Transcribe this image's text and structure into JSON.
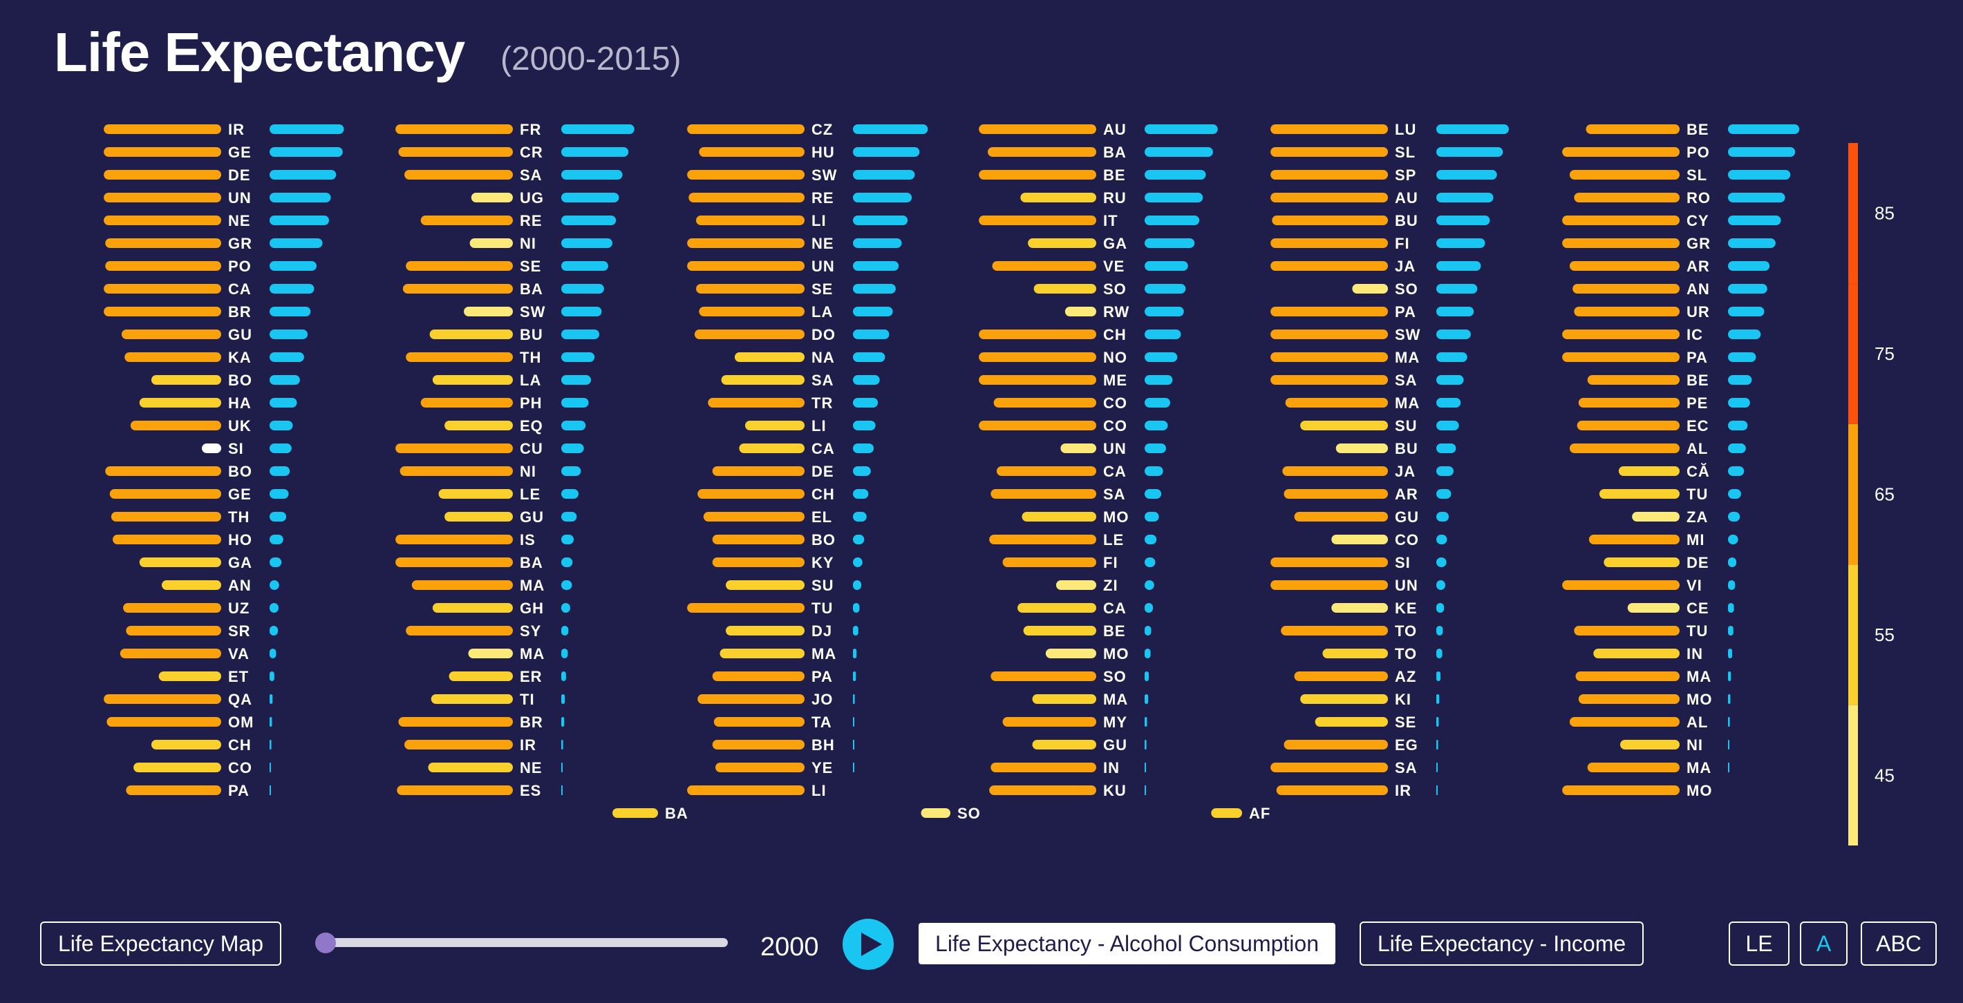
{
  "header": {
    "title": "Life Expectancy",
    "subtitle": "(2000-2015)"
  },
  "controls": {
    "map_label": "Life Expectancy Map",
    "year": "2000",
    "alcohol_label": "Life Expectancy - Alcohol Consumption",
    "income_label": "Life Expectancy - Income",
    "sort_le": "LE",
    "sort_a": "A",
    "sort_abc": "ABC",
    "slider_fraction": 0
  },
  "colors": {
    "background": "#1f1e4a",
    "alcohol_bar": "#19c6f2",
    "le_45_55": "#ffffff",
    "le_55_65": "#fbea7a",
    "le_65_75": "#fad02c",
    "le_75_85": "#f9a20b",
    "le_85_plus": "#fb520c",
    "slider_thumb": "#9077c9"
  },
  "chart_data": {
    "type": "bar",
    "title": "Life Expectancy",
    "subtitle": "(2000-2015)",
    "measures": [
      "life expectancy (left, orange bars)",
      "alcohol consumption (right, blue bars)"
    ],
    "legend": {
      "position": "right",
      "ticks": [
        85,
        75,
        65,
        55,
        45
      ],
      "bins": [
        40,
        50,
        60,
        70,
        80,
        90
      ]
    },
    "columns": [
      [
        {
          "c": "IR",
          "le": 79.5,
          "a": 12.5
        },
        {
          "c": "GE",
          "le": 79.5,
          "a": 12.3
        },
        {
          "c": "DE",
          "le": 79.5,
          "a": 11.2
        },
        {
          "c": "UN",
          "le": 79.5,
          "a": 10.3
        },
        {
          "c": "NE",
          "le": 79.5,
          "a": 10.0
        },
        {
          "c": "GR",
          "le": 79.0,
          "a": 8.9
        },
        {
          "c": "PO",
          "le": 79.0,
          "a": 7.9
        },
        {
          "c": "CA",
          "le": 79.5,
          "a": 7.5
        },
        {
          "c": "BR",
          "le": 79.5,
          "a": 6.9
        },
        {
          "c": "GU",
          "le": 73.5,
          "a": 6.4
        },
        {
          "c": "KA",
          "le": 72.5,
          "a": 5.8
        },
        {
          "c": "BO",
          "le": 63.5,
          "a": 5.1
        },
        {
          "c": "HA",
          "le": 67.5,
          "a": 4.6
        },
        {
          "c": "UK",
          "le": 70.5,
          "a": 3.9
        },
        {
          "c": "SI",
          "le": 46.5,
          "a": 3.7
        },
        {
          "c": "BO",
          "le": 79.0,
          "a": 3.4
        },
        {
          "c": "GE",
          "le": 77.5,
          "a": 3.2
        },
        {
          "c": "TH",
          "le": 77.0,
          "a": 2.8
        },
        {
          "c": "HO",
          "le": 76.5,
          "a": 2.3
        },
        {
          "c": "GA",
          "le": 67.5,
          "a": 2.0
        },
        {
          "c": "AN",
          "le": 60.0,
          "a": 1.6
        },
        {
          "c": "UZ",
          "le": 73.0,
          "a": 1.5
        },
        {
          "c": "SR",
          "le": 72.0,
          "a": 1.4
        },
        {
          "c": "VA",
          "le": 74.0,
          "a": 1.1
        },
        {
          "c": "ET",
          "le": 61.0,
          "a": 0.8
        },
        {
          "c": "QA",
          "le": 79.5,
          "a": 0.5
        },
        {
          "c": "OM",
          "le": 78.5,
          "a": 0.4
        },
        {
          "c": "CH",
          "le": 63.5,
          "a": 0.3
        },
        {
          "c": "CO",
          "le": 69.5,
          "a": 0.2
        },
        {
          "c": "PA",
          "le": 72.0,
          "a": 0.1
        }
      ],
      [
        {
          "c": "FR",
          "le": 79.5,
          "a": 12.3
        },
        {
          "c": "CR",
          "le": 78.5,
          "a": 11.3
        },
        {
          "c": "SA",
          "le": 76.5,
          "a": 10.3
        },
        {
          "c": "UG",
          "le": 54.0,
          "a": 9.7
        },
        {
          "c": "RE",
          "le": 71.0,
          "a": 9.2
        },
        {
          "c": "NI",
          "le": 54.5,
          "a": 8.6
        },
        {
          "c": "SE",
          "le": 76.0,
          "a": 7.9
        },
        {
          "c": "BA",
          "le": 77.0,
          "a": 7.2
        },
        {
          "c": "SW",
          "le": 56.5,
          "a": 6.8
        },
        {
          "c": "BU",
          "le": 68.0,
          "a": 6.4
        },
        {
          "c": "TH",
          "le": 76.0,
          "a": 5.6
        },
        {
          "c": "LA",
          "le": 67.0,
          "a": 5.0
        },
        {
          "c": "PH",
          "le": 71.0,
          "a": 4.6
        },
        {
          "c": "EQ",
          "le": 63.0,
          "a": 4.1
        },
        {
          "c": "CU",
          "le": 79.5,
          "a": 3.8
        },
        {
          "c": "NI",
          "le": 78.0,
          "a": 3.3
        },
        {
          "c": "LE",
          "le": 65.0,
          "a": 2.9
        },
        {
          "c": "GU",
          "le": 63.0,
          "a": 2.6
        },
        {
          "c": "IS",
          "le": 79.5,
          "a": 2.1
        },
        {
          "c": "BA",
          "le": 79.5,
          "a": 1.9
        },
        {
          "c": "MA",
          "le": 74.0,
          "a": 1.8
        },
        {
          "c": "GH",
          "le": 67.0,
          "a": 1.5
        },
        {
          "c": "SY",
          "le": 76.0,
          "a": 1.2
        },
        {
          "c": "MA",
          "le": 55.0,
          "a": 1.1
        },
        {
          "c": "ER",
          "le": 61.5,
          "a": 0.8
        },
        {
          "c": "TI",
          "le": 67.5,
          "a": 0.6
        },
        {
          "c": "BR",
          "le": 78.5,
          "a": 0.5
        },
        {
          "c": "IR",
          "le": 76.5,
          "a": 0.3
        },
        {
          "c": "NE",
          "le": 68.5,
          "a": 0.2
        },
        {
          "c": "ES",
          "le": 79.0,
          "a": 0.1
        }
      ],
      [
        {
          "c": "CZ",
          "le": 79.5,
          "a": 12.6
        },
        {
          "c": "HU",
          "le": 75.5,
          "a": 11.2
        },
        {
          "c": "SW",
          "le": 79.5,
          "a": 10.4
        },
        {
          "c": "RE",
          "le": 79.0,
          "a": 9.9
        },
        {
          "c": "LI",
          "le": 76.5,
          "a": 9.2
        },
        {
          "c": "NE",
          "le": 79.5,
          "a": 8.2
        },
        {
          "c": "UN",
          "le": 79.5,
          "a": 7.7
        },
        {
          "c": "SE",
          "le": 76.5,
          "a": 7.2
        },
        {
          "c": "LA",
          "le": 75.5,
          "a": 6.7
        },
        {
          "c": "DO",
          "le": 77.0,
          "a": 6.1
        },
        {
          "c": "NA",
          "le": 63.5,
          "a": 5.4
        },
        {
          "c": "SA",
          "le": 68.0,
          "a": 4.5
        },
        {
          "c": "TR",
          "le": 72.5,
          "a": 4.2
        },
        {
          "c": "LI",
          "le": 60.0,
          "a": 3.8
        },
        {
          "c": "CA",
          "le": 62.0,
          "a": 3.5
        },
        {
          "c": "DE",
          "le": 71.0,
          "a": 3.0
        },
        {
          "c": "CH",
          "le": 76.0,
          "a": 2.6
        },
        {
          "c": "EL",
          "le": 74.0,
          "a": 2.3
        },
        {
          "c": "BO",
          "le": 71.0,
          "a": 1.9
        },
        {
          "c": "KY",
          "le": 71.0,
          "a": 1.6
        },
        {
          "c": "SU",
          "le": 66.5,
          "a": 1.4
        },
        {
          "c": "TU",
          "le": 79.5,
          "a": 1.1
        },
        {
          "c": "DJ",
          "le": 66.5,
          "a": 0.9
        },
        {
          "c": "MA",
          "le": 68.5,
          "a": 0.6
        },
        {
          "c": "PA",
          "le": 71.0,
          "a": 0.5
        },
        {
          "c": "JO",
          "le": 76.0,
          "a": 0.3
        },
        {
          "c": "TA",
          "le": 70.5,
          "a": 0.2
        },
        {
          "c": "BH",
          "le": 71.0,
          "a": 0.1
        },
        {
          "c": "YE",
          "le": 70.0,
          "a": 0.05
        },
        {
          "c": "LI",
          "le": 79.5,
          "a": 0
        }
      ],
      [
        {
          "c": "AU",
          "le": 79.5,
          "a": 12.3
        },
        {
          "c": "BA",
          "le": 76.5,
          "a": 11.5
        },
        {
          "c": "BE",
          "le": 79.5,
          "a": 10.3
        },
        {
          "c": "RU",
          "le": 65.5,
          "a": 9.8
        },
        {
          "c": "IT",
          "le": 79.5,
          "a": 9.2
        },
        {
          "c": "GA",
          "le": 63.0,
          "a": 8.4
        },
        {
          "c": "VE",
          "le": 75.0,
          "a": 7.3
        },
        {
          "c": "SO",
          "le": 61.0,
          "a": 6.9
        },
        {
          "c": "RW",
          "le": 50.5,
          "a": 6.6
        },
        {
          "c": "CH",
          "le": 79.5,
          "a": 6.1
        },
        {
          "c": "NO",
          "le": 79.5,
          "a": 5.5
        },
        {
          "c": "ME",
          "le": 79.5,
          "a": 4.7
        },
        {
          "c": "CO",
          "le": 74.5,
          "a": 4.3
        },
        {
          "c": "CO",
          "le": 79.5,
          "a": 3.9
        },
        {
          "c": "UN",
          "le": 52.0,
          "a": 3.6
        },
        {
          "c": "CA",
          "le": 73.5,
          "a": 3.1
        },
        {
          "c": "SA",
          "le": 75.5,
          "a": 2.8
        },
        {
          "c": "MO",
          "le": 65.0,
          "a": 2.4
        },
        {
          "c": "LE",
          "le": 76.0,
          "a": 2.0
        },
        {
          "c": "FI",
          "le": 71.5,
          "a": 1.8
        },
        {
          "c": "ZI",
          "le": 53.5,
          "a": 1.6
        },
        {
          "c": "CA",
          "le": 66.5,
          "a": 1.4
        },
        {
          "c": "BE",
          "le": 64.5,
          "a": 1.1
        },
        {
          "c": "MO",
          "le": 57.0,
          "a": 1.0
        },
        {
          "c": "SO",
          "le": 75.5,
          "a": 0.7
        },
        {
          "c": "MA",
          "le": 61.5,
          "a": 0.6
        },
        {
          "c": "MY",
          "le": 71.5,
          "a": 0.4
        },
        {
          "c": "GU",
          "le": 61.5,
          "a": 0.3
        },
        {
          "c": "IN",
          "le": 75.5,
          "a": 0.15
        },
        {
          "c": "KU",
          "le": 76.0,
          "a": 0.05
        }
      ],
      [
        {
          "c": "LU",
          "le": 79.5,
          "a": 12.2
        },
        {
          "c": "SL",
          "le": 79.5,
          "a": 11.2
        },
        {
          "c": "SP",
          "le": 79.5,
          "a": 10.2
        },
        {
          "c": "AU",
          "le": 79.5,
          "a": 9.6
        },
        {
          "c": "BU",
          "le": 79.0,
          "a": 9.0
        },
        {
          "c": "FI",
          "le": 79.5,
          "a": 8.2
        },
        {
          "c": "JA",
          "le": 79.5,
          "a": 7.5
        },
        {
          "c": "SO",
          "le": 52.0,
          "a": 6.9
        },
        {
          "c": "PA",
          "le": 79.5,
          "a": 6.3
        },
        {
          "c": "SW",
          "le": 79.5,
          "a": 5.8
        },
        {
          "c": "MA",
          "le": 79.5,
          "a": 5.2
        },
        {
          "c": "SA",
          "le": 79.5,
          "a": 4.6
        },
        {
          "c": "MA",
          "le": 74.5,
          "a": 4.1
        },
        {
          "c": "SU",
          "le": 69.5,
          "a": 3.8
        },
        {
          "c": "BU",
          "le": 57.5,
          "a": 3.3
        },
        {
          "c": "JA",
          "le": 75.5,
          "a": 2.9
        },
        {
          "c": "AR",
          "le": 75.0,
          "a": 2.5
        },
        {
          "c": "GU",
          "le": 71.5,
          "a": 2.1
        },
        {
          "c": "CO",
          "le": 59.0,
          "a": 1.8
        },
        {
          "c": "SI",
          "le": 79.5,
          "a": 1.7
        },
        {
          "c": "UN",
          "le": 79.5,
          "a": 1.5
        },
        {
          "c": "KE",
          "le": 59.0,
          "a": 1.3
        },
        {
          "c": "TO",
          "le": 76.0,
          "a": 1.1
        },
        {
          "c": "TO",
          "le": 62.0,
          "a": 1.0
        },
        {
          "c": "AZ",
          "le": 71.5,
          "a": 0.7
        },
        {
          "c": "KI",
          "le": 69.5,
          "a": 0.5
        },
        {
          "c": "SE",
          "le": 64.5,
          "a": 0.4
        },
        {
          "c": "EG",
          "le": 75.0,
          "a": 0.3
        },
        {
          "c": "SA",
          "le": 79.5,
          "a": 0.2
        },
        {
          "c": "IR",
          "le": 77.5,
          "a": 0.1
        }
      ],
      [
        {
          "c": "BE",
          "le": 71.5,
          "a": 12.0
        },
        {
          "c": "PO",
          "le": 79.5,
          "a": 11.3
        },
        {
          "c": "SL",
          "le": 77.0,
          "a": 10.5
        },
        {
          "c": "RO",
          "le": 75.5,
          "a": 9.6
        },
        {
          "c": "CY",
          "le": 79.5,
          "a": 8.9
        },
        {
          "c": "GR",
          "le": 79.5,
          "a": 8.0
        },
        {
          "c": "AR",
          "le": 77.0,
          "a": 7.0
        },
        {
          "c": "AN",
          "le": 76.0,
          "a": 6.6
        },
        {
          "c": "UR",
          "le": 75.5,
          "a": 6.1
        },
        {
          "c": "IC",
          "le": 79.5,
          "a": 5.5
        },
        {
          "c": "PA",
          "le": 79.5,
          "a": 4.7
        },
        {
          "c": "BE",
          "le": 71.0,
          "a": 4.0
        },
        {
          "c": "PE",
          "le": 74.0,
          "a": 3.7
        },
        {
          "c": "EC",
          "le": 74.5,
          "a": 3.3
        },
        {
          "c": "AL",
          "le": 77.0,
          "a": 3.0
        },
        {
          "c": "CĂ",
          "le": 60.5,
          "a": 2.7
        },
        {
          "c": "TU",
          "le": 67.0,
          "a": 2.2
        },
        {
          "c": "ZA",
          "le": 56.0,
          "a": 2.0
        },
        {
          "c": "MI",
          "le": 70.5,
          "a": 1.7
        },
        {
          "c": "DE",
          "le": 65.5,
          "a": 1.4
        },
        {
          "c": "VI",
          "le": 79.5,
          "a": 1.2
        },
        {
          "c": "CE",
          "le": 57.5,
          "a": 1.0
        },
        {
          "c": "TU",
          "le": 75.5,
          "a": 0.9
        },
        {
          "c": "IN",
          "le": 69.0,
          "a": 0.7
        },
        {
          "c": "MA",
          "le": 75.0,
          "a": 0.5
        },
        {
          "c": "MO",
          "le": 74.0,
          "a": 0.4
        },
        {
          "c": "AL",
          "le": 77.0,
          "a": 0.3
        },
        {
          "c": "NI",
          "le": 60.0,
          "a": 0.2
        },
        {
          "c": "MA",
          "le": 71.0,
          "a": 0.1
        },
        {
          "c": "MO",
          "le": 79.5,
          "a": 0
        }
      ]
    ],
    "overflow_row": [
      {
        "c": "BA",
        "le": 69.5
      },
      {
        "c": "SO",
        "le": 59.0
      },
      {
        "c": "AF",
        "le": 60.0
      }
    ]
  }
}
